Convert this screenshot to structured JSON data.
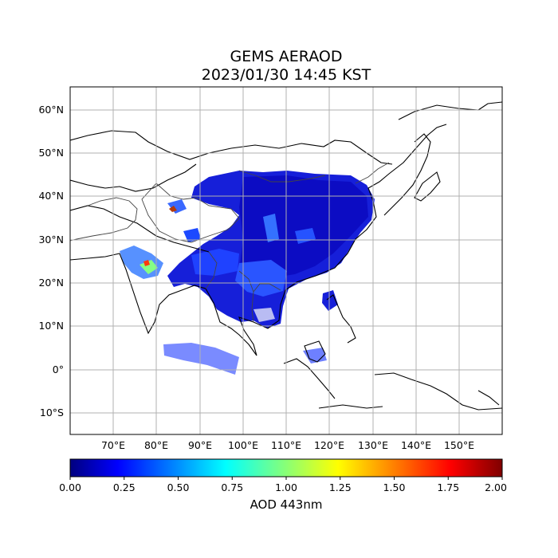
{
  "title": {
    "line1": "GEMS AERAOD",
    "line2": "2023/01/30 14:45 KST"
  },
  "map": {
    "lon_ticks": [
      "70°E",
      "80°E",
      "90°E",
      "100°E",
      "110°E",
      "120°E",
      "130°E",
      "140°E",
      "150°E"
    ],
    "lat_ticks": [
      "60°N",
      "50°N",
      "40°N",
      "30°N",
      "20°N",
      "10°N",
      "0°",
      "10°S"
    ],
    "grid": "on"
  },
  "colorbar": {
    "colormap": "jet",
    "ticks": [
      "0.00",
      "0.25",
      "0.50",
      "0.75",
      "1.00",
      "1.25",
      "1.50",
      "1.75",
      "2.00"
    ],
    "label": "AOD 443nm",
    "colors": [
      "#00007f",
      "#0000ff",
      "#007fff",
      "#00ffff",
      "#7fff7f",
      "#ffff00",
      "#ff7f00",
      "#ff0000",
      "#7f0000"
    ]
  }
}
